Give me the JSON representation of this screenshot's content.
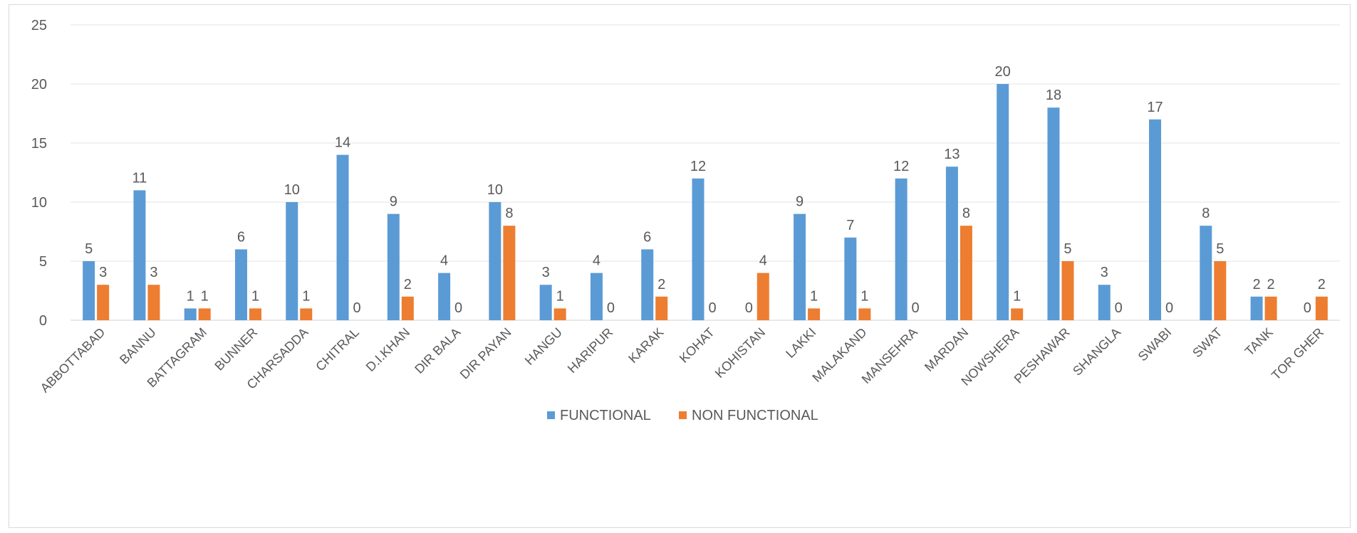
{
  "chart_data": {
    "type": "bar",
    "title": "",
    "xlabel": "",
    "ylabel": "",
    "ylim": [
      0,
      25
    ],
    "yticks": [
      0,
      5,
      10,
      15,
      20,
      25
    ],
    "grid": "horizontal",
    "legend": "bottom-center",
    "categories": [
      "ABBOTTABAD",
      "BANNU",
      "BATTAGRAM",
      "BUNNER",
      "CHARSADDA",
      "CHITRAL",
      "D.I.KHAN",
      "DIR BALA",
      "DIR PAYAN",
      "HANGU",
      "HARIPUR",
      "KARAK",
      "KOHAT",
      "KOHISTAN",
      "LAKKI",
      "MALAKAND",
      "MANSEHRA",
      "MARDAN",
      "NOWSHERA",
      "PESHAWAR",
      "SHANGLA",
      "SWABI",
      "SWAT",
      "TANK",
      "TOR GHER"
    ],
    "series": [
      {
        "name": "FUNCTIONAL",
        "color": "#5B9BD5",
        "values": [
          5,
          11,
          1,
          6,
          10,
          14,
          9,
          4,
          10,
          3,
          4,
          6,
          12,
          0,
          9,
          7,
          12,
          13,
          20,
          18,
          3,
          17,
          8,
          2,
          0
        ]
      },
      {
        "name": "NON FUNCTIONAL",
        "color": "#ED7D31",
        "values": [
          3,
          3,
          1,
          1,
          1,
          0,
          2,
          0,
          8,
          1,
          0,
          2,
          0,
          4,
          1,
          1,
          0,
          8,
          1,
          5,
          0,
          0,
          5,
          2,
          2
        ]
      }
    ]
  }
}
